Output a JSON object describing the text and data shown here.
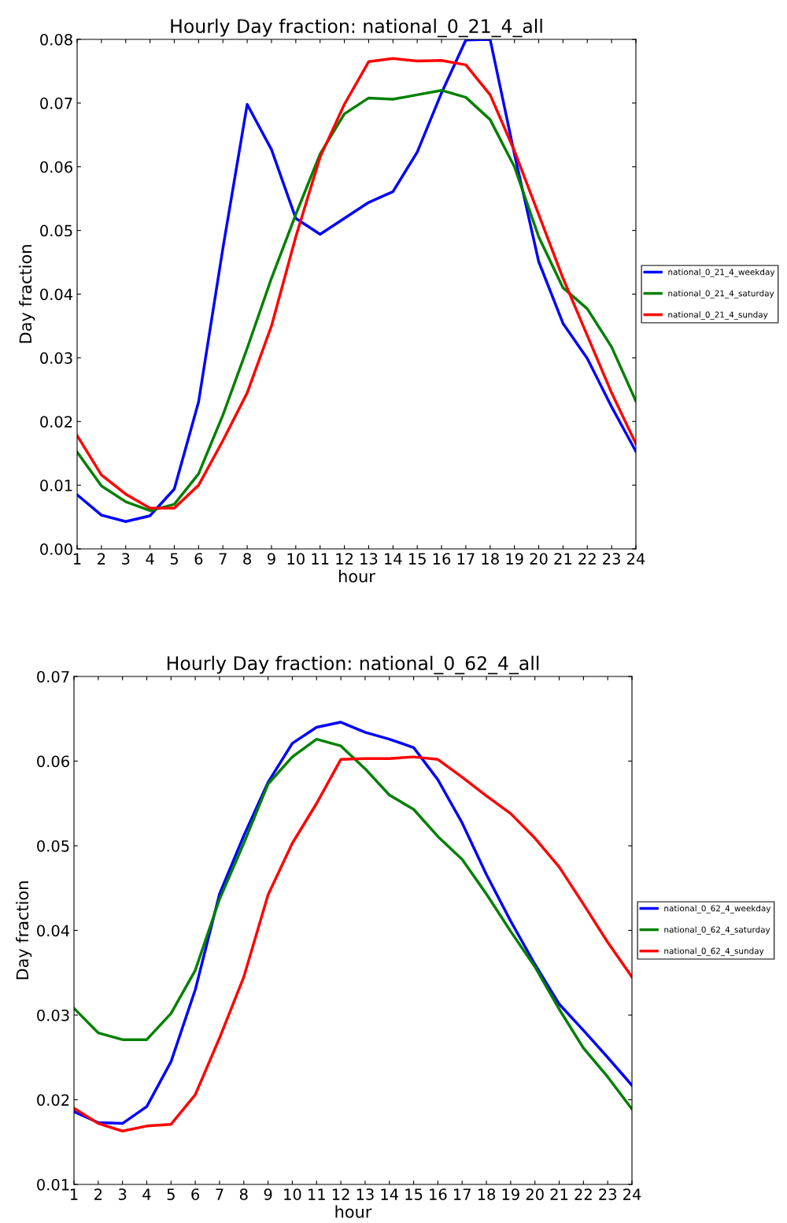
{
  "chart_data": [
    {
      "type": "line",
      "title": "Hourly Day fraction: national_0_21_4_all",
      "xlabel": "hour",
      "ylabel": "Day fraction",
      "x": [
        1,
        2,
        3,
        4,
        5,
        6,
        7,
        8,
        9,
        10,
        11,
        12,
        13,
        14,
        15,
        16,
        17,
        18,
        19,
        20,
        21,
        22,
        23,
        24
      ],
      "xlim": [
        1,
        24
      ],
      "xticks": [
        1,
        2,
        3,
        4,
        5,
        6,
        7,
        8,
        9,
        10,
        11,
        12,
        13,
        14,
        15,
        16,
        17,
        18,
        19,
        20,
        21,
        22,
        23,
        24
      ],
      "ylim": [
        0,
        0.08
      ],
      "yticks": [
        {
          "value": 0,
          "label": "0.00"
        },
        {
          "value": 0.01,
          "label": "0.01"
        },
        {
          "value": 0.02,
          "label": "0.02"
        },
        {
          "value": 0.03,
          "label": "0.03"
        },
        {
          "value": 0.04,
          "label": "0.04"
        },
        {
          "value": 0.05,
          "label": "0.05"
        },
        {
          "value": 0.06,
          "label": "0.06"
        },
        {
          "value": 0.07,
          "label": "0.07"
        },
        {
          "value": 0.08,
          "label": "0.08"
        }
      ],
      "grid": false,
      "legend": "right",
      "marker": "none",
      "line_style": "solid",
      "series": [
        {
          "name": "national_0_21_4_weekday",
          "color": "#0000ff",
          "values": [
            0.0085,
            0.0053,
            0.0043,
            0.0052,
            0.0094,
            0.0231,
            0.0472,
            0.0698,
            0.0627,
            0.0519,
            0.0494,
            0.0519,
            0.0544,
            0.0561,
            0.0623,
            0.0716,
            0.0799,
            0.08,
            0.062,
            0.0451,
            0.0354,
            0.0299,
            0.0223,
            0.0153
          ]
        },
        {
          "name": "national_0_21_4_saturday",
          "color": "#008000",
          "values": [
            0.0152,
            0.0099,
            0.0074,
            0.006,
            0.007,
            0.0118,
            0.021,
            0.0315,
            0.0425,
            0.0525,
            0.062,
            0.0683,
            0.0708,
            0.0706,
            0.0713,
            0.072,
            0.0709,
            0.0674,
            0.06,
            0.049,
            0.041,
            0.0377,
            0.0317,
            0.0232
          ]
        },
        {
          "name": "national_0_21_4_sunday",
          "color": "#ff0000",
          "values": [
            0.0178,
            0.0116,
            0.0086,
            0.0064,
            0.0064,
            0.01,
            0.017,
            0.0245,
            0.035,
            0.049,
            0.0615,
            0.0698,
            0.0765,
            0.077,
            0.0766,
            0.0767,
            0.076,
            0.0713,
            0.0625,
            0.0525,
            0.0425,
            0.0335,
            0.0245,
            0.0165
          ]
        }
      ]
    },
    {
      "type": "line",
      "title": "Hourly Day fraction: national_0_62_4_all",
      "xlabel": "hour",
      "ylabel": "Day fraction",
      "x": [
        1,
        2,
        3,
        4,
        5,
        6,
        7,
        8,
        9,
        10,
        11,
        12,
        13,
        14,
        15,
        16,
        17,
        18,
        19,
        20,
        21,
        22,
        23,
        24
      ],
      "xlim": [
        1,
        24
      ],
      "xticks": [
        1,
        2,
        3,
        4,
        5,
        6,
        7,
        8,
        9,
        10,
        11,
        12,
        13,
        14,
        15,
        16,
        17,
        18,
        19,
        20,
        21,
        22,
        23,
        24
      ],
      "ylim": [
        0.01,
        0.07
      ],
      "yticks": [
        {
          "value": 0.01,
          "label": "0.01"
        },
        {
          "value": 0.02,
          "label": "0.02"
        },
        {
          "value": 0.03,
          "label": "0.03"
        },
        {
          "value": 0.04,
          "label": "0.04"
        },
        {
          "value": 0.05,
          "label": "0.05"
        },
        {
          "value": 0.06,
          "label": "0.06"
        },
        {
          "value": 0.07,
          "label": "0.07"
        }
      ],
      "grid": false,
      "legend": "right",
      "marker": "none",
      "line_style": "solid",
      "series": [
        {
          "name": "national_0_62_4_weekday",
          "color": "#0000ff",
          "values": [
            0.0186,
            0.0173,
            0.0172,
            0.0192,
            0.0245,
            0.033,
            0.0443,
            0.0512,
            0.0575,
            0.0621,
            0.064,
            0.0646,
            0.0634,
            0.0626,
            0.0616,
            0.0578,
            0.0527,
            0.0466,
            0.0411,
            0.036,
            0.0313,
            0.0282,
            0.025,
            0.0217
          ]
        },
        {
          "name": "national_0_62_4_saturday",
          "color": "#008000",
          "values": [
            0.0308,
            0.0279,
            0.0271,
            0.0271,
            0.0302,
            0.0353,
            0.0437,
            0.0503,
            0.0573,
            0.0605,
            0.0626,
            0.0618,
            0.0591,
            0.056,
            0.0543,
            0.0511,
            0.0484,
            0.0443,
            0.0399,
            0.0357,
            0.0307,
            0.0261,
            0.0227,
            0.0189
          ]
        },
        {
          "name": "national_0_62_4_sunday",
          "color": "#ff0000",
          "values": [
            0.019,
            0.0172,
            0.0163,
            0.0169,
            0.0171,
            0.0206,
            0.0273,
            0.0345,
            0.0442,
            0.0503,
            0.055,
            0.0602,
            0.0603,
            0.0603,
            0.0605,
            0.0602,
            0.0581,
            0.0559,
            0.0538,
            0.0509,
            0.0475,
            0.0431,
            0.0386,
            0.0345
          ]
        }
      ]
    }
  ]
}
